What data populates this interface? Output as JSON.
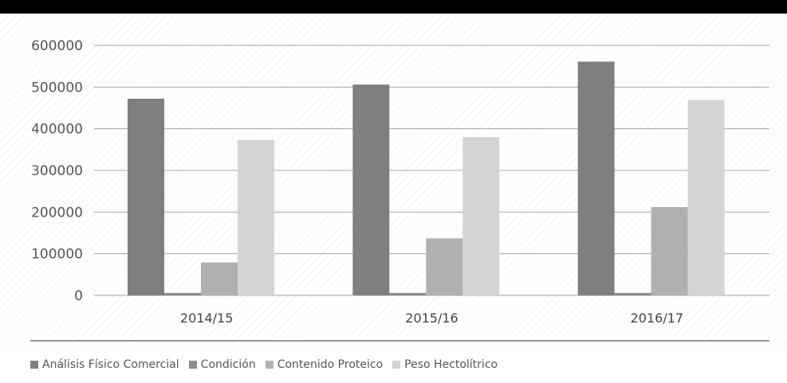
{
  "chart_data": {
    "type": "bar",
    "categories": [
      "2014/15",
      "2015/16",
      "2016/17"
    ],
    "series": [
      {
        "name": "Análisis Físico Comercial",
        "values": [
          472000,
          506000,
          561000
        ],
        "color": "#7f7f7f"
      },
      {
        "name": "Condición",
        "values": [
          6000,
          6000,
          6000
        ],
        "color": "#8c8c8c"
      },
      {
        "name": "Contenido Proteico",
        "values": [
          79000,
          137000,
          212000
        ],
        "color": "#b0b0b0"
      },
      {
        "name": "Peso Hectolítrico",
        "values": [
          373000,
          380000,
          469000
        ],
        "color": "#d4d4d4"
      }
    ],
    "yticks": [
      "0",
      "100000",
      "200000",
      "300000",
      "400000",
      "500000",
      "600000"
    ],
    "ylim": [
      0,
      600000
    ],
    "grid": true,
    "legend_position": "bottom-left",
    "title": "",
    "xlabel": "",
    "ylabel": ""
  }
}
